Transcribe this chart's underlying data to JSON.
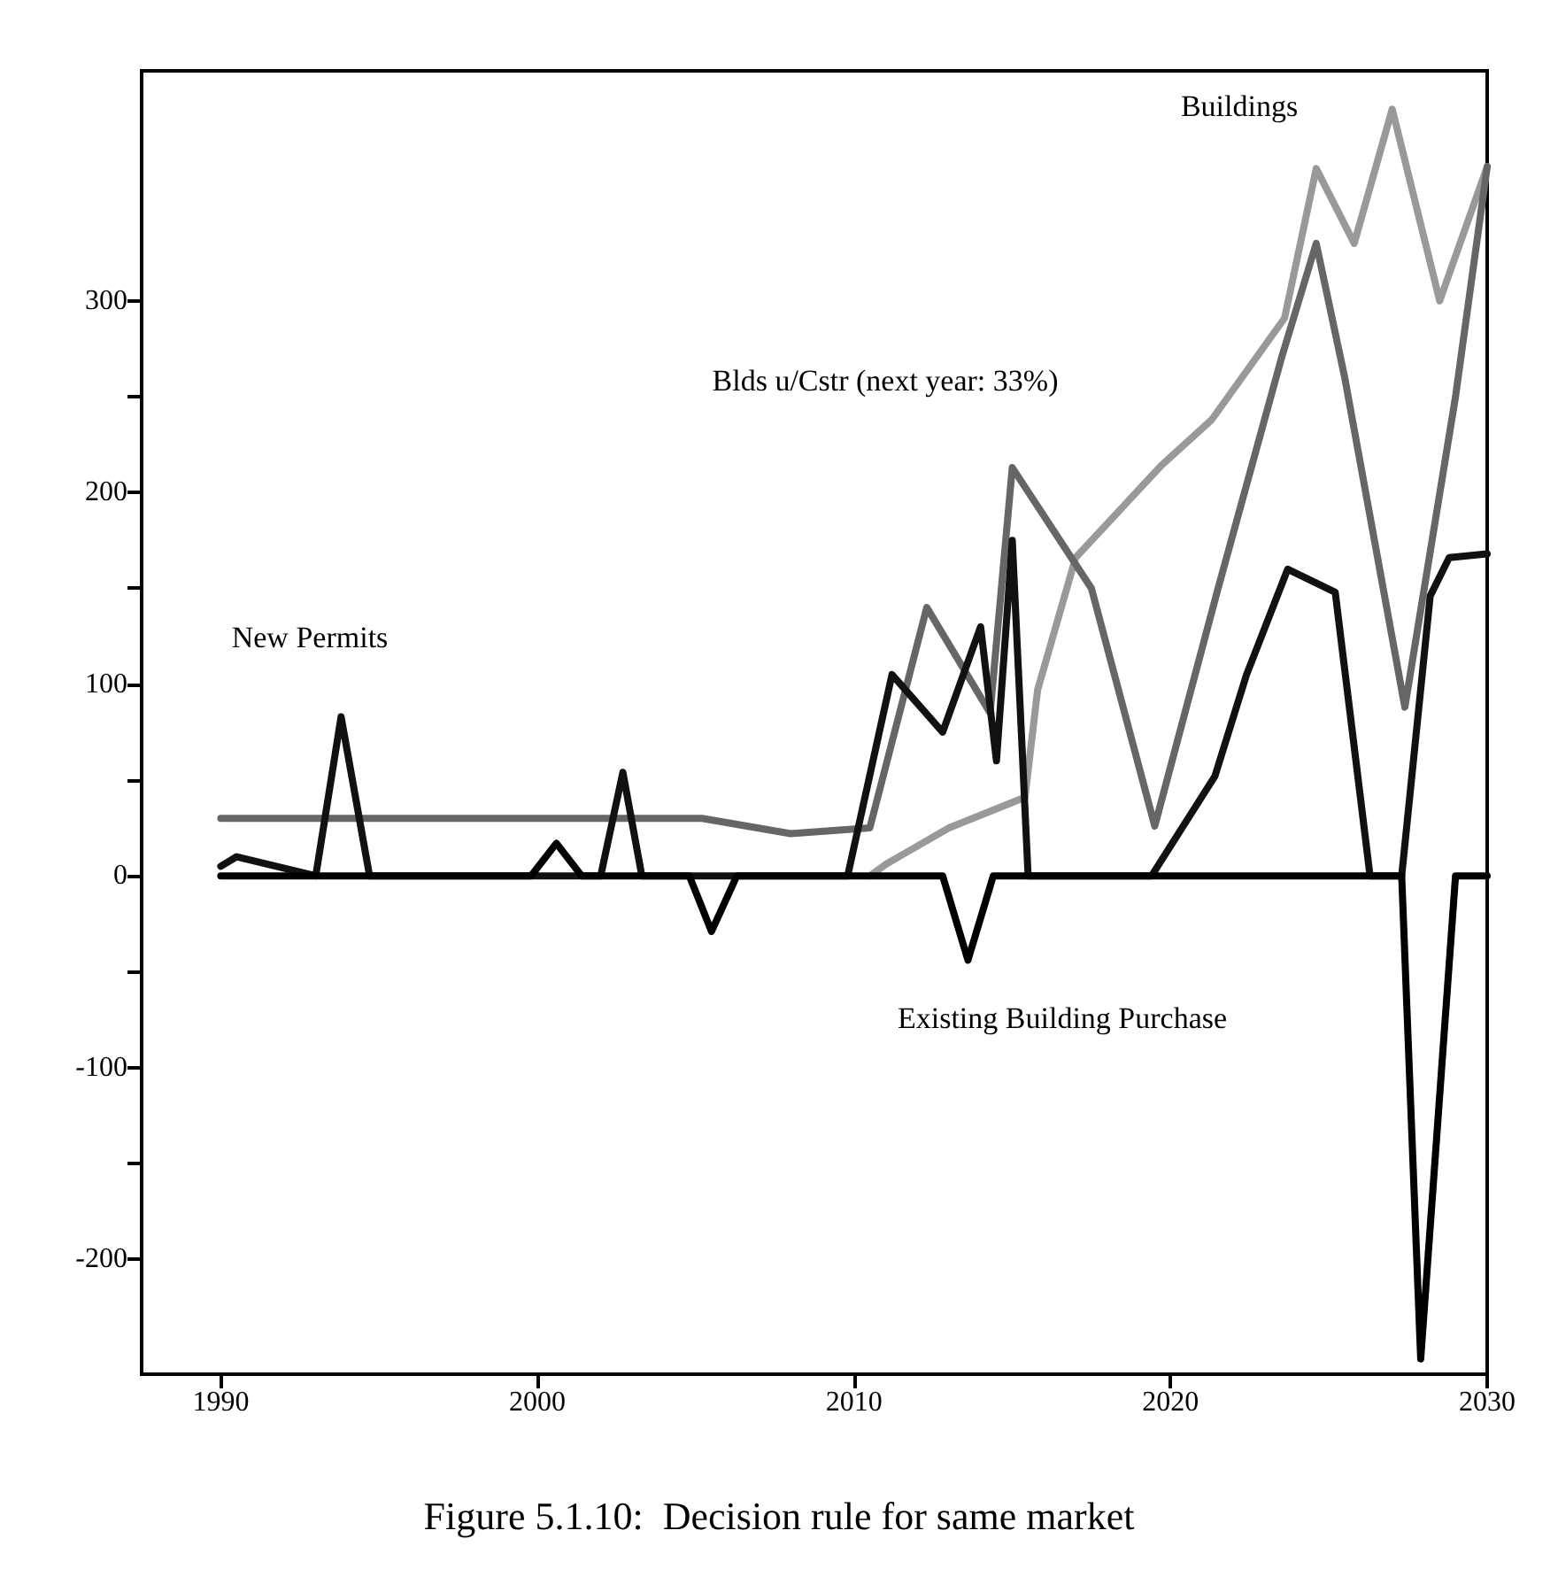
{
  "chart_data": {
    "type": "line",
    "title": "Figure 5.1.10:  Decision rule for same market",
    "xlim": [
      1987.5,
      2030
    ],
    "xticks": [
      1990,
      2000,
      2010,
      2020,
      2030
    ],
    "ylim": [
      -260,
      420
    ],
    "yticks": [
      -200,
      {
        "value": -150,
        "label": null
      },
      -100,
      {
        "value": -50,
        "label": null
      },
      0,
      {
        "value": 50,
        "label": null
      },
      100,
      {
        "value": 150,
        "label": null
      },
      200,
      {
        "value": 250,
        "label": null
      },
      300
    ],
    "grid": false,
    "marker": "none",
    "line_style": "solid",
    "series": [
      {
        "color": "#999999",
        "x": [
          2010.5,
          2011,
          2013,
          2015.4,
          2015.8,
          2017,
          2019.7,
          2021.3,
          2023.6,
          2024.6,
          2025.8,
          2027,
          2028.5,
          2030
        ],
        "values": [
          0,
          6,
          25,
          41,
          97,
          166,
          214,
          238,
          291,
          369,
          330,
          400,
          300,
          370
        ]
      },
      {
        "color": "#666666",
        "x": [
          1990,
          2005.2,
          2008,
          2010.5,
          2012.3,
          2014.3,
          2015,
          2017.5,
          2019.5,
          2021.5,
          2023.5,
          2024.6,
          2025.5,
          2027.4,
          2029,
          2030
        ],
        "values": [
          30,
          30,
          22,
          25,
          140,
          85,
          213,
          150,
          26,
          150,
          270,
          330,
          260,
          88,
          250,
          370
        ]
      },
      {
        "color": "#111111",
        "x": [
          1990,
          1990.5,
          1993,
          1993.8,
          1994.7,
          2002,
          2002.7,
          2003.3,
          2009.8,
          2011.2,
          2012.8,
          2014,
          2014.5,
          2015,
          2015.5,
          2019.4,
          2021.4,
          2022.4,
          2023.7,
          2025.2,
          2026.3,
          2027.3,
          2028.2,
          2028.8,
          2030
        ],
        "values": [
          5,
          10,
          0,
          83,
          0,
          0,
          54,
          0,
          0,
          105,
          75,
          130,
          60,
          175,
          0,
          0,
          52,
          105,
          160,
          148,
          0,
          0,
          146,
          166,
          168
        ]
      },
      {
        "color": "#000000",
        "x": [
          1990,
          1999.8,
          2000.6,
          2001.4,
          2004.8,
          2005.5,
          2006.3,
          2012.8,
          2013.6,
          2014.4,
          2027.3,
          2027.9,
          2029,
          2030
        ],
        "values": [
          0,
          0,
          17,
          0,
          0,
          -29,
          0,
          0,
          -44,
          0,
          0,
          -252,
          0,
          0
        ]
      }
    ],
    "annotations": [
      "New Permits",
      "Blds u/Cstr (next year: 33%)",
      "Buildings",
      "Existing Building Purchase"
    ]
  }
}
